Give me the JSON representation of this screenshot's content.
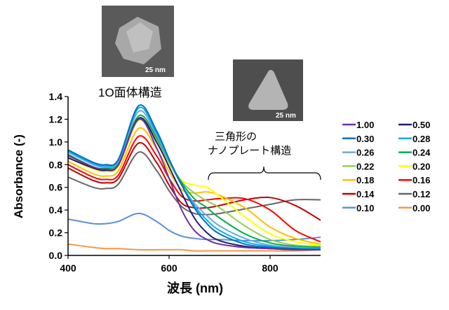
{
  "chart_data": {
    "type": "line",
    "xlabel": "波長 (nm)",
    "ylabel": "Absorbance (-)",
    "xlim": [
      400,
      900
    ],
    "ylim": [
      0,
      1.4
    ],
    "xticks": [
      "400",
      "600",
      "800"
    ],
    "yticks": [
      "0.0",
      "0.2",
      "0.4",
      "0.6",
      "0.8",
      "1.0",
      "1.2",
      "1.4"
    ],
    "grid": false,
    "legend_position": "right",
    "x": [
      400,
      450,
      475,
      500,
      540,
      575,
      600,
      625,
      650,
      675,
      700,
      750,
      800,
      850,
      900
    ],
    "series": [
      {
        "name": "1.00",
        "color": "#7030a0",
        "values": [
          0.88,
          0.78,
          0.76,
          0.8,
          1.2,
          0.95,
          0.68,
          0.4,
          0.22,
          0.14,
          0.1,
          0.07,
          0.06,
          0.05,
          0.05
        ]
      },
      {
        "name": "0.50",
        "color": "#1f1f6e",
        "values": [
          0.86,
          0.77,
          0.75,
          0.8,
          1.21,
          1.0,
          0.78,
          0.55,
          0.33,
          0.2,
          0.13,
          0.08,
          0.06,
          0.05,
          0.05
        ]
      },
      {
        "name": "0.30",
        "color": "#0070c0",
        "values": [
          0.93,
          0.82,
          0.8,
          0.85,
          1.32,
          1.1,
          0.85,
          0.62,
          0.42,
          0.28,
          0.19,
          0.1,
          0.07,
          0.06,
          0.05
        ]
      },
      {
        "name": "0.28",
        "color": "#00b0f0",
        "values": [
          0.92,
          0.81,
          0.79,
          0.84,
          1.3,
          1.08,
          0.84,
          0.62,
          0.44,
          0.31,
          0.22,
          0.12,
          0.08,
          0.06,
          0.06
        ]
      },
      {
        "name": "0.26",
        "color": "#6fa8dc",
        "values": [
          0.91,
          0.8,
          0.78,
          0.83,
          1.27,
          1.06,
          0.83,
          0.62,
          0.46,
          0.35,
          0.26,
          0.15,
          0.09,
          0.07,
          0.06
        ]
      },
      {
        "name": "0.24",
        "color": "#00b050",
        "values": [
          0.89,
          0.78,
          0.77,
          0.82,
          1.23,
          1.04,
          0.83,
          0.64,
          0.5,
          0.42,
          0.33,
          0.19,
          0.11,
          0.08,
          0.07
        ]
      },
      {
        "name": "0.22",
        "color": "#92d050",
        "values": [
          0.88,
          0.77,
          0.76,
          0.81,
          1.2,
          1.02,
          0.82,
          0.65,
          0.55,
          0.48,
          0.42,
          0.26,
          0.14,
          0.09,
          0.08
        ]
      },
      {
        "name": "0.20",
        "color": "#ffff00",
        "values": [
          0.86,
          0.76,
          0.74,
          0.79,
          1.19,
          1.0,
          0.8,
          0.66,
          0.62,
          0.6,
          0.52,
          0.34,
          0.19,
          0.12,
          0.09
        ]
      },
      {
        "name": "0.18",
        "color": "#ffc000",
        "values": [
          0.83,
          0.72,
          0.7,
          0.75,
          1.12,
          0.94,
          0.74,
          0.58,
          0.55,
          0.56,
          0.53,
          0.42,
          0.25,
          0.15,
          0.1
        ]
      },
      {
        "name": "0.16",
        "color": "#ff0000",
        "values": [
          0.8,
          0.69,
          0.67,
          0.71,
          1.05,
          0.88,
          0.68,
          0.52,
          0.48,
          0.49,
          0.5,
          0.5,
          0.4,
          0.22,
          0.12
        ]
      },
      {
        "name": "0.14",
        "color": "#c00000",
        "values": [
          0.77,
          0.66,
          0.64,
          0.68,
          0.99,
          0.82,
          0.62,
          0.46,
          0.42,
          0.42,
          0.44,
          0.49,
          0.51,
          0.44,
          0.31
        ]
      },
      {
        "name": "0.12",
        "color": "#666666",
        "values": [
          0.69,
          0.6,
          0.59,
          0.63,
          0.91,
          0.75,
          0.57,
          0.43,
          0.37,
          0.36,
          0.37,
          0.41,
          0.45,
          0.49,
          0.49
        ]
      },
      {
        "name": "0.10",
        "color": "#5b8fd9",
        "values": [
          0.32,
          0.28,
          0.28,
          0.3,
          0.37,
          0.3,
          0.22,
          0.17,
          0.15,
          0.14,
          0.14,
          0.13,
          0.13,
          0.14,
          0.16
        ]
      },
      {
        "name": "0.00",
        "color": "#f79646",
        "values": [
          0.1,
          0.07,
          0.06,
          0.06,
          0.05,
          0.05,
          0.05,
          0.05,
          0.04,
          0.04,
          0.04,
          0.04,
          0.04,
          0.04,
          0.05
        ]
      }
    ],
    "annotations": {
      "decahedron": "1O面体構造",
      "triangle_line1": "三角形の",
      "triangle_line2": "ナノプレート構造",
      "scale1": "25 nm",
      "scale2": "25 nm"
    }
  }
}
